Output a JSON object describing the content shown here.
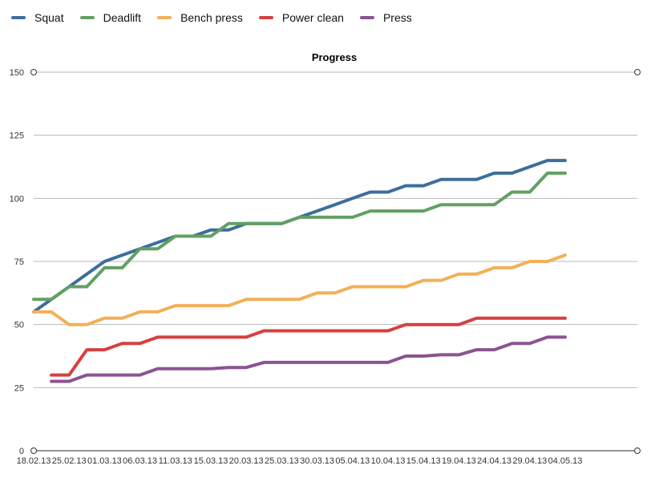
{
  "chart_data": {
    "type": "line",
    "title": "Progress",
    "xlabel": "",
    "ylabel": "",
    "ylim": [
      0,
      150
    ],
    "yticks": [
      0,
      25,
      50,
      75,
      100,
      125,
      150
    ],
    "grid": true,
    "legend_position": "top-left",
    "x_tick_labels": [
      "18.02.13",
      "25.02.13",
      "01.03.13",
      "06.03.13",
      "11.03.13",
      "15.03.13",
      "20.03.13",
      "25.03.13",
      "30.03.13",
      "05.04.13",
      "10.04.13",
      "15.04.13",
      "19.04.13",
      "24.04.13",
      "29.04.13",
      "04.05.13"
    ],
    "x_count": 31,
    "series": [
      {
        "name": "Squat",
        "color": "#3c6e9c",
        "start": 0,
        "values": [
          55,
          60,
          65,
          70,
          75,
          77.5,
          80,
          82.5,
          85,
          85,
          87.5,
          87.5,
          90,
          90,
          90,
          92.5,
          95,
          97.5,
          100,
          102.5,
          102.5,
          105,
          105,
          107.5,
          107.5,
          107.5,
          110,
          110,
          112.5,
          115,
          115
        ]
      },
      {
        "name": "Deadlift",
        "color": "#62a063",
        "start": 0,
        "values": [
          60,
          60,
          65,
          65,
          72.5,
          72.5,
          80,
          80,
          85,
          85,
          85,
          90,
          90,
          90,
          90,
          92.5,
          92.5,
          92.5,
          92.5,
          95,
          95,
          95,
          95,
          97.5,
          97.5,
          97.5,
          97.5,
          102.5,
          102.5,
          110,
          110
        ]
      },
      {
        "name": "Bench press",
        "color": "#f2b058",
        "start": 0,
        "values": [
          55,
          55,
          50,
          50,
          52.5,
          52.5,
          55,
          55,
          57.5,
          57.5,
          57.5,
          57.5,
          60,
          60,
          60,
          60,
          62.5,
          62.5,
          65,
          65,
          65,
          65,
          67.5,
          67.5,
          70,
          70,
          72.5,
          72.5,
          75,
          75,
          77.5
        ]
      },
      {
        "name": "Power clean",
        "color": "#d64040",
        "start": 1,
        "values": [
          30,
          30,
          40,
          40,
          42.5,
          42.5,
          45,
          45,
          45,
          45,
          45,
          45,
          47.5,
          47.5,
          47.5,
          47.5,
          47.5,
          47.5,
          47.5,
          47.5,
          50,
          50,
          50,
          50,
          52.5,
          52.5,
          52.5,
          52.5,
          52.5,
          52.5
        ]
      },
      {
        "name": "Press",
        "color": "#8a5490",
        "start": 1,
        "values": [
          27.5,
          27.5,
          30,
          30,
          30,
          30,
          32.5,
          32.5,
          32.5,
          32.5,
          33,
          33,
          35,
          35,
          35,
          35,
          35,
          35,
          35,
          35,
          37.5,
          37.5,
          38,
          38,
          40,
          40,
          42.5,
          42.5,
          45,
          45
        ]
      }
    ]
  }
}
